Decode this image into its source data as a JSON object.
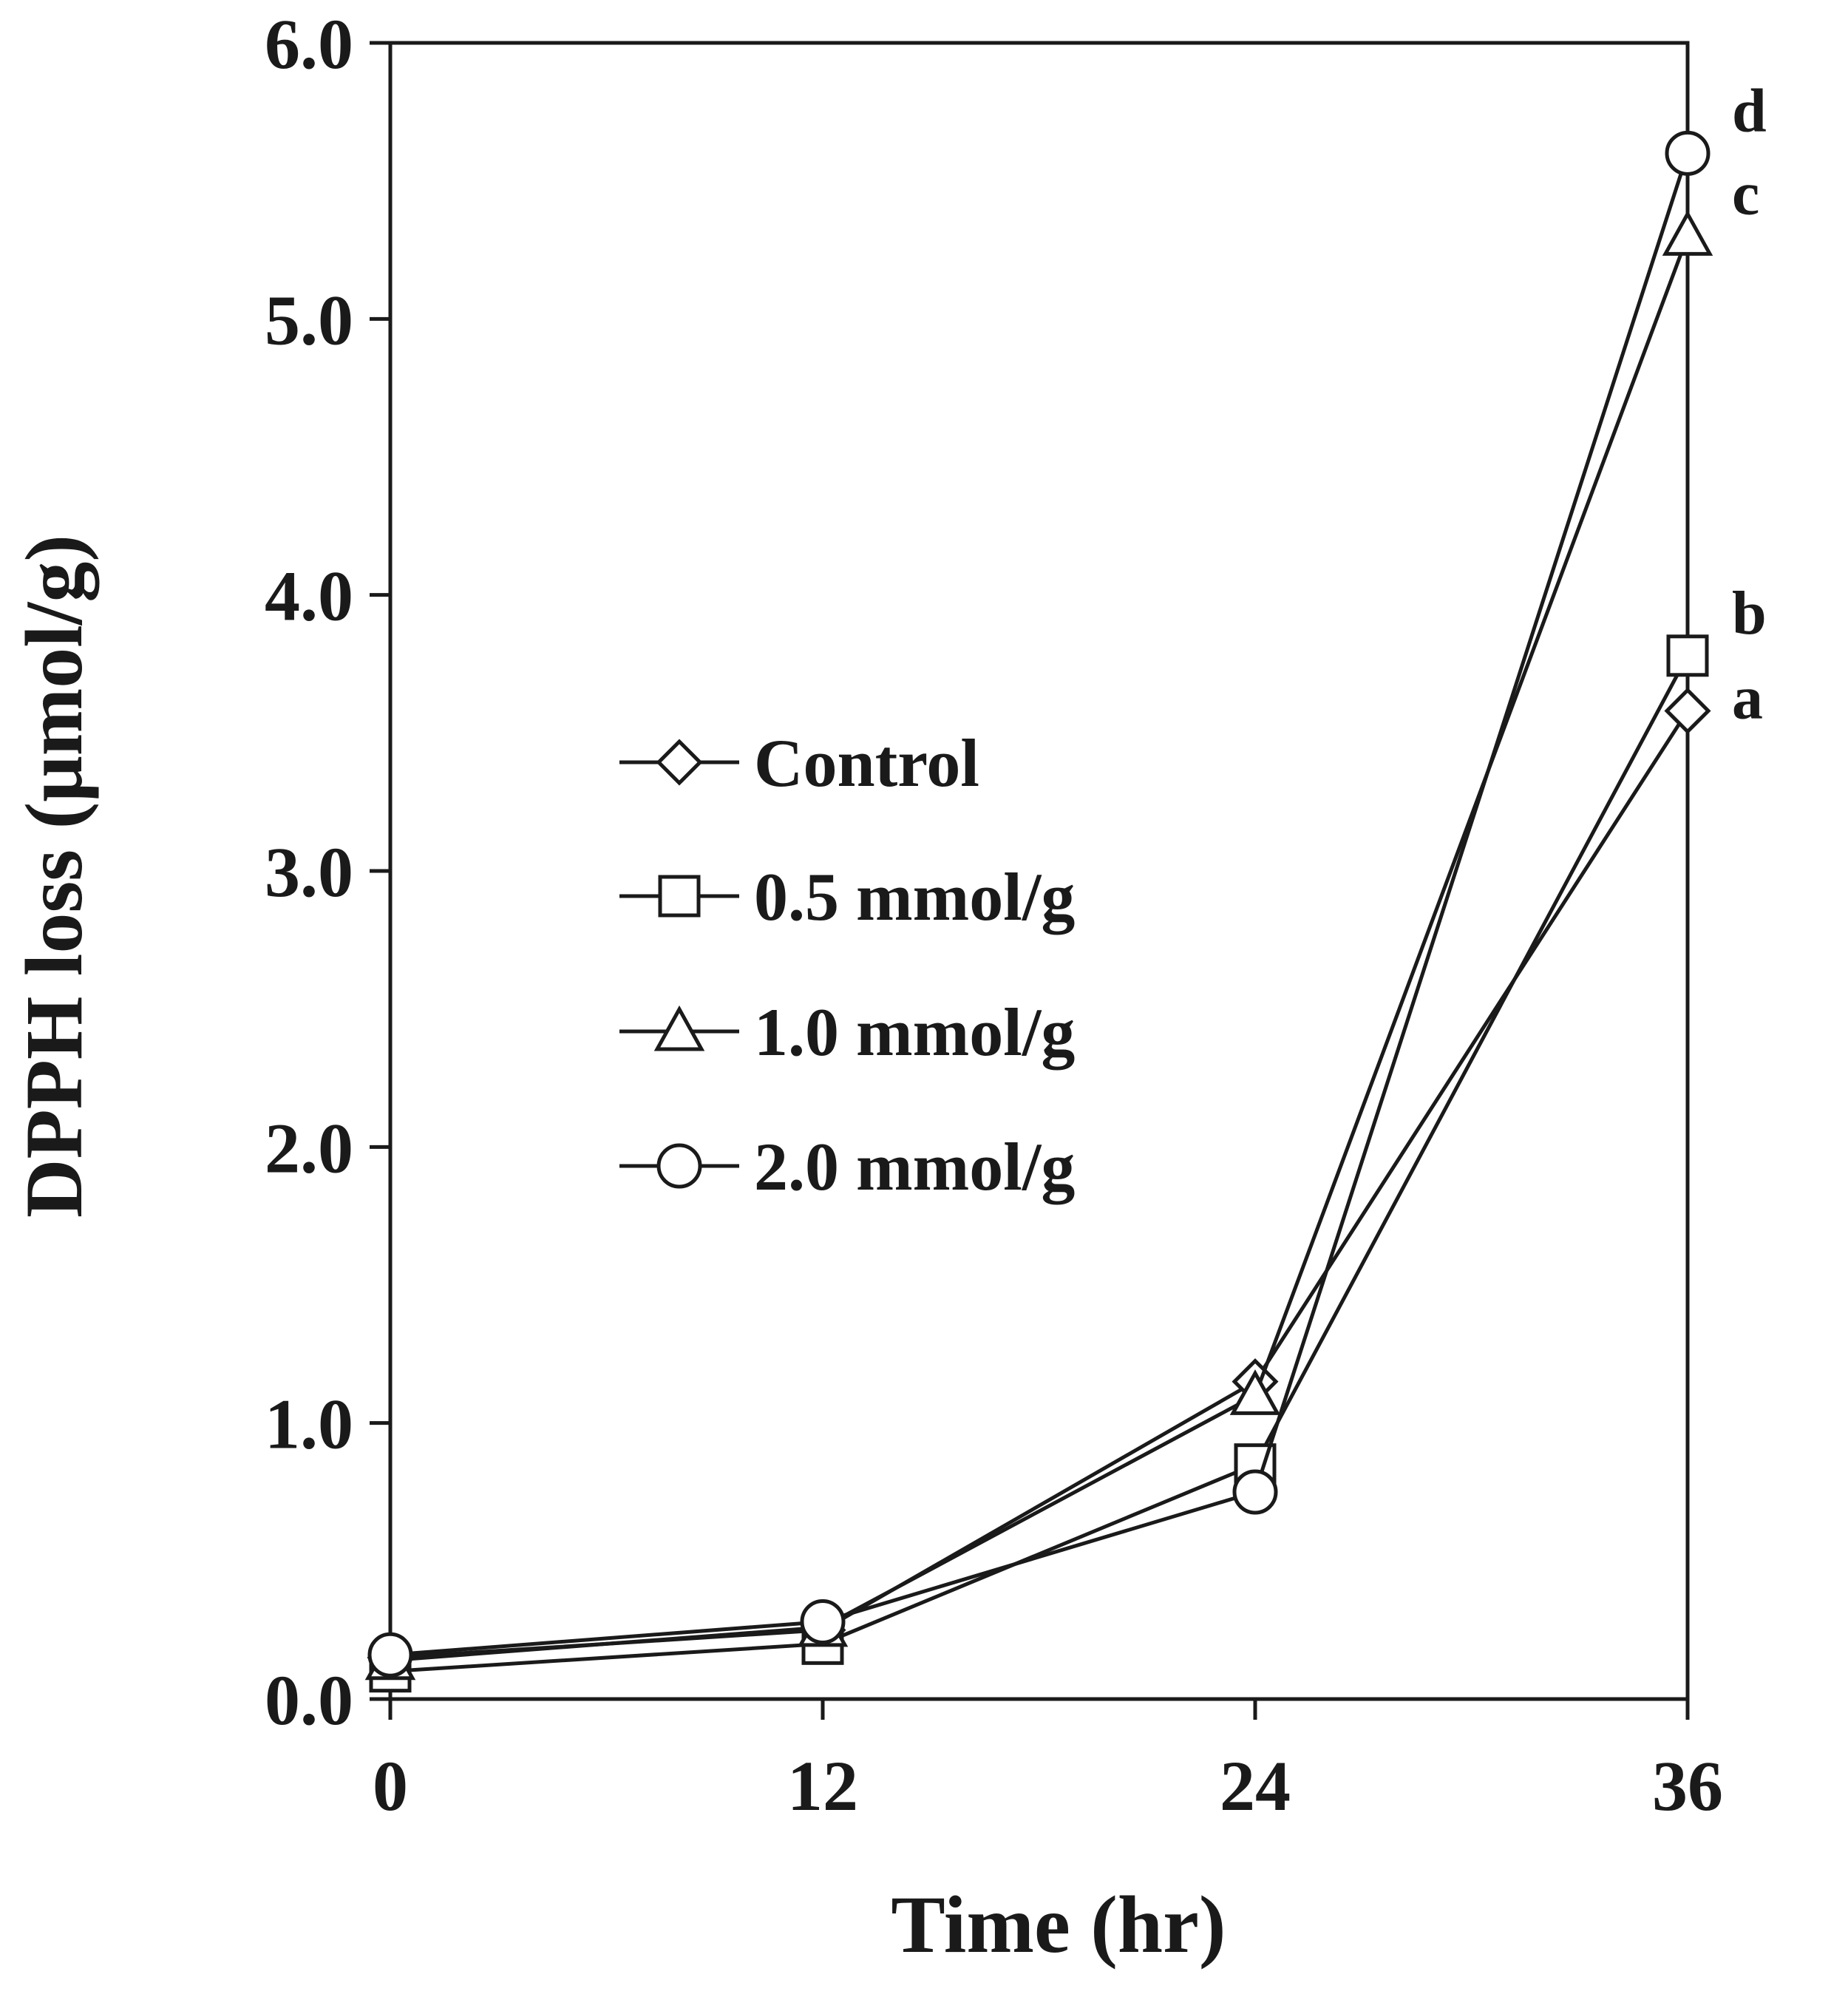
{
  "chart_data": {
    "type": "line",
    "title": "",
    "xlabel": "Time (hr)",
    "ylabel": "DPPH loss (μmol/g)",
    "xlim": [
      0,
      36
    ],
    "ylim": [
      0,
      6
    ],
    "grid": false,
    "legend_position": "center-left",
    "x_ticks": [
      "0",
      "12",
      "24",
      "36"
    ],
    "y_ticks": [
      "0.0",
      "1.0",
      "2.0",
      "3.0",
      "4.0",
      "5.0",
      "6.0"
    ],
    "x": [
      0,
      12,
      24,
      36
    ],
    "series": [
      {
        "name": "Control",
        "marker": "diamond",
        "values": [
          0.15,
          0.25,
          1.15,
          3.58
        ],
        "letter": "a"
      },
      {
        "name": "0.5 mmol/g",
        "marker": "square",
        "values": [
          0.1,
          0.2,
          0.85,
          3.78
        ],
        "letter": "b"
      },
      {
        "name": "1.0 mmol/g",
        "marker": "triangle",
        "values": [
          0.14,
          0.26,
          1.1,
          5.3
        ],
        "letter": "c"
      },
      {
        "name": "2.0 mmol/g",
        "marker": "circle",
        "values": [
          0.16,
          0.28,
          0.75,
          5.6
        ],
        "letter": "d"
      }
    ],
    "colors": {
      "line": "#1a1a1a",
      "marker_fill": "#ffffff"
    }
  }
}
